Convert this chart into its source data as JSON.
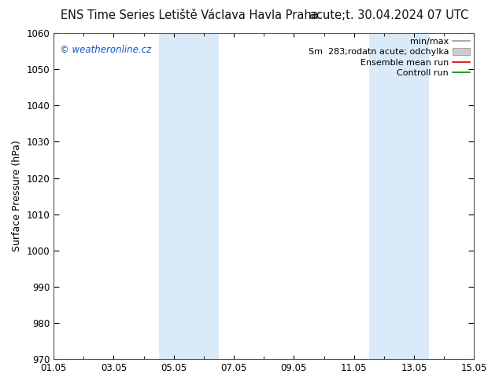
{
  "title_left": "ENS Time Series Letiště Václava Havla Praha",
  "title_right": "acute;t. 30.04.2024 07 UTC",
  "ylabel": "Surface Pressure (hPa)",
  "ylim": [
    970,
    1060
  ],
  "yticks": [
    970,
    980,
    990,
    1000,
    1010,
    1020,
    1030,
    1040,
    1050,
    1060
  ],
  "xlim": [
    0,
    14
  ],
  "xtick_labels": [
    "01.05",
    "03.05",
    "05.05",
    "07.05",
    "09.05",
    "11.05",
    "13.05",
    "15.05"
  ],
  "xtick_positions": [
    0,
    2,
    4,
    6,
    8,
    10,
    12,
    14
  ],
  "shade_bands": [
    {
      "xstart": 3.5,
      "xend": 5.5
    },
    {
      "xstart": 10.5,
      "xend": 12.5
    }
  ],
  "shade_color": "#daeaf8",
  "watermark": "© weatheronline.cz",
  "watermark_color": "#1155cc",
  "legend_labels": [
    "min/max",
    "Sm  283;rodatn acute; odchylka",
    "Ensemble mean run",
    "Controll run"
  ],
  "legend_colors": [
    "#999999",
    "#bbbbbb",
    "#cc0000",
    "#008800"
  ],
  "background_color": "#ffffff",
  "plot_bg_color": "#ffffff",
  "title_fontsize": 10.5,
  "axis_label_fontsize": 9,
  "tick_fontsize": 8.5,
  "watermark_fontsize": 8.5,
  "legend_fontsize": 8
}
